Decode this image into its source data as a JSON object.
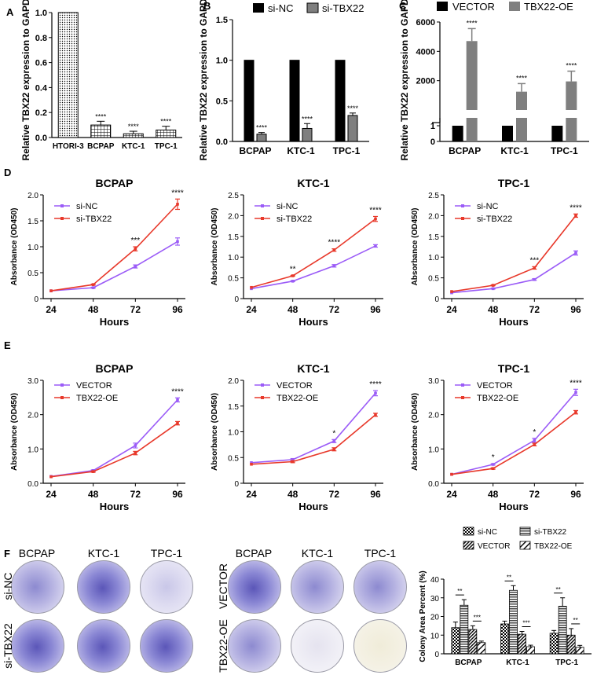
{
  "figure_letters": {
    "A": "A",
    "B": "B",
    "C": "C",
    "D": "D",
    "E": "E",
    "F": "F"
  },
  "colors": {
    "black": "#000000",
    "gray": "#7f7f7f",
    "purple": "#9b5cf7",
    "red": "#e8392b",
    "text": "#000000"
  },
  "chart_data": [
    {
      "id": "A",
      "type": "bar",
      "ylabel": "Relative TBX22 expression to GAPDH",
      "categories": [
        "HTORI-3",
        "BCPAP",
        "KTC-1",
        "TPC-1"
      ],
      "values": [
        1.0,
        0.1,
        0.03,
        0.06
      ],
      "errors": [
        0.0,
        0.03,
        0.02,
        0.03
      ],
      "significance": [
        "",
        "****",
        "****",
        "****"
      ],
      "ylim": [
        0,
        1.0
      ],
      "yticks": [
        0.0,
        0.2,
        0.4,
        0.6,
        0.8,
        1.0
      ],
      "ytick_labels": [
        "0.0",
        "0.2",
        "0.4",
        "0.6",
        "0.8",
        "1.0"
      ]
    },
    {
      "id": "B",
      "type": "bar",
      "ylabel": "Relative TBX22 expression to GAPDH",
      "categories": [
        "BCPAP",
        "KTC-1",
        "TPC-1"
      ],
      "series": [
        {
          "name": "si-NC",
          "values": [
            1.0,
            1.0,
            1.0
          ],
          "errors": [
            0,
            0,
            0
          ],
          "significance": [
            "",
            "",
            ""
          ]
        },
        {
          "name": "si-TBX22",
          "values": [
            0.09,
            0.16,
            0.32
          ],
          "errors": [
            0.02,
            0.06,
            0.03
          ],
          "significance": [
            "****",
            "****",
            "****"
          ]
        }
      ],
      "ylim": [
        0,
        1.5
      ],
      "yticks": [
        0.0,
        0.5,
        1.0,
        1.5
      ],
      "ytick_labels": [
        "0.0",
        "0.5",
        "1.0",
        "1.5"
      ],
      "legend": "top"
    },
    {
      "id": "C",
      "type": "bar",
      "ylabel": "Relative TBX22 expression to GAPDH",
      "categories": [
        "BCPAP",
        "KTC-1",
        "TPC-1"
      ],
      "series": [
        {
          "name": "VECTOR",
          "values": [
            1,
            1,
            1
          ],
          "errors": [
            0,
            0,
            0
          ],
          "significance": [
            "",
            "",
            ""
          ]
        },
        {
          "name": "TBX22-OE",
          "values": [
            4700,
            1250,
            1950
          ],
          "errors": [
            850,
            550,
            700
          ],
          "significance": [
            "****",
            "****",
            "****"
          ]
        }
      ],
      "axis_break": true,
      "lower_segment": {
        "ylim": [
          0,
          1.5
        ],
        "yticks": [
          0,
          1
        ],
        "ytick_labels": [
          "0",
          "1"
        ]
      },
      "upper_segment": {
        "ylim": [
          0,
          6000
        ],
        "yticks": [
          2000,
          4000,
          6000
        ],
        "ytick_labels": [
          "2000",
          "4000",
          "6000"
        ]
      },
      "legend": "top"
    },
    {
      "id": "D1",
      "type": "line",
      "title": "BCPAP",
      "xlabel": "Hours",
      "ylabel": "Absorbance (OD450)",
      "x": [
        24,
        48,
        72,
        96
      ],
      "xtick_labels": [
        "24",
        "48",
        "72",
        "96"
      ],
      "ylim": [
        0,
        2.0
      ],
      "yticks": [
        0,
        0.5,
        1.0,
        1.5,
        2.0
      ],
      "ytick_labels": [
        "0",
        "0.5",
        "1.0",
        "1.5",
        "2.0"
      ],
      "series": [
        {
          "name": "si-NC",
          "color": "purple",
          "values": [
            0.15,
            0.21,
            0.62,
            1.1
          ],
          "errors": [
            0,
            0.01,
            0.03,
            0.07
          ]
        },
        {
          "name": "si-TBX22",
          "color": "red",
          "values": [
            0.15,
            0.27,
            0.96,
            1.82
          ],
          "errors": [
            0,
            0.01,
            0.04,
            0.1
          ]
        }
      ],
      "significance": [
        "",
        "",
        "***",
        "****"
      ]
    },
    {
      "id": "D2",
      "type": "line",
      "title": "KTC-1",
      "xlabel": "Hours",
      "ylabel": "Absorbance (OD450)",
      "x": [
        24,
        48,
        72,
        96
      ],
      "xtick_labels": [
        "24",
        "48",
        "72",
        "96"
      ],
      "ylim": [
        0,
        2.5
      ],
      "yticks": [
        0,
        0.5,
        1.0,
        1.5,
        2.0,
        2.5
      ],
      "ytick_labels": [
        "0",
        "0.5",
        "1.0",
        "1.5",
        "2.0",
        "2.5"
      ],
      "series": [
        {
          "name": "si-NC",
          "color": "purple",
          "values": [
            0.24,
            0.42,
            0.79,
            1.27
          ],
          "errors": [
            0,
            0.01,
            0.03,
            0.03
          ]
        },
        {
          "name": "si-TBX22",
          "color": "red",
          "values": [
            0.27,
            0.55,
            1.17,
            1.92
          ],
          "errors": [
            0,
            0.01,
            0.03,
            0.06
          ]
        }
      ],
      "significance": [
        "",
        "**",
        "****",
        "****"
      ]
    },
    {
      "id": "D3",
      "type": "line",
      "title": "TPC-1",
      "xlabel": "Hours",
      "ylabel": "Absorbance (OD450)",
      "x": [
        24,
        48,
        72,
        96
      ],
      "xtick_labels": [
        "24",
        "48",
        "72",
        "96"
      ],
      "ylim": [
        0,
        2.5
      ],
      "yticks": [
        0,
        0.5,
        1.0,
        1.5,
        2.0,
        2.5
      ],
      "ytick_labels": [
        "0",
        "0.5",
        "1.0",
        "1.5",
        "2.0",
        "2.5"
      ],
      "series": [
        {
          "name": "si-NC",
          "color": "purple",
          "values": [
            0.14,
            0.24,
            0.46,
            1.1
          ],
          "errors": [
            0,
            0.01,
            0.02,
            0.05
          ]
        },
        {
          "name": "si-TBX22",
          "color": "red",
          "values": [
            0.17,
            0.32,
            0.74,
            2.0
          ],
          "errors": [
            0,
            0.01,
            0.03,
            0.04
          ]
        }
      ],
      "significance": [
        "",
        "",
        "***",
        "****"
      ]
    },
    {
      "id": "E1",
      "type": "line",
      "title": "BCPAP",
      "xlabel": "Hours",
      "ylabel": "Absorbance (OD450)",
      "x": [
        24,
        48,
        72,
        96
      ],
      "xtick_labels": [
        "24",
        "48",
        "72",
        "96"
      ],
      "ylim": [
        0,
        3.0
      ],
      "yticks": [
        0,
        1.0,
        2.0,
        3.0
      ],
      "ytick_labels": [
        "0.0",
        "1.0",
        "2.0",
        "3.0"
      ],
      "series": [
        {
          "name": "VECTOR",
          "color": "purple",
          "values": [
            0.2,
            0.37,
            1.1,
            2.43
          ],
          "errors": [
            0,
            0.02,
            0.07,
            0.06
          ]
        },
        {
          "name": "TBX22-OE",
          "color": "red",
          "values": [
            0.19,
            0.34,
            0.88,
            1.75
          ],
          "errors": [
            0,
            0.02,
            0.05,
            0.05
          ]
        }
      ],
      "significance": [
        "",
        "",
        "",
        "****"
      ]
    },
    {
      "id": "E2",
      "type": "line",
      "title": "KTC-1",
      "xlabel": "Hours",
      "ylabel": "Absorbance (OD450)",
      "x": [
        24,
        48,
        72,
        96
      ],
      "xtick_labels": [
        "24",
        "48",
        "72",
        "96"
      ],
      "ylim": [
        0,
        2.0
      ],
      "yticks": [
        0,
        0.5,
        1.0,
        1.5,
        2.0
      ],
      "ytick_labels": [
        "0",
        "0.5",
        "1.0",
        "1.5",
        "2.0"
      ],
      "series": [
        {
          "name": "VECTOR",
          "color": "purple",
          "values": [
            0.4,
            0.46,
            0.82,
            1.75
          ],
          "errors": [
            0,
            0.02,
            0.03,
            0.05
          ]
        },
        {
          "name": "TBX22-OE",
          "color": "red",
          "values": [
            0.37,
            0.42,
            0.66,
            1.33
          ],
          "errors": [
            0,
            0.02,
            0.03,
            0.03
          ]
        }
      ],
      "significance": [
        "",
        "",
        "*",
        "****"
      ]
    },
    {
      "id": "E3",
      "type": "line",
      "title": "TPC-1",
      "xlabel": "Hours",
      "ylabel": "Absorbance (OD450)",
      "x": [
        24,
        48,
        72,
        96
      ],
      "xtick_labels": [
        "24",
        "48",
        "72",
        "96"
      ],
      "ylim": [
        0,
        3.0
      ],
      "yticks": [
        0,
        1.0,
        2.0,
        3.0
      ],
      "ytick_labels": [
        "0.0",
        "1.0",
        "2.0",
        "3.0"
      ],
      "series": [
        {
          "name": "VECTOR",
          "color": "purple",
          "values": [
            0.26,
            0.55,
            1.25,
            2.65
          ],
          "errors": [
            0,
            0.02,
            0.06,
            0.09
          ]
        },
        {
          "name": "TBX22-OE",
          "color": "red",
          "values": [
            0.26,
            0.43,
            1.13,
            2.07
          ],
          "errors": [
            0,
            0.02,
            0.04,
            0.05
          ]
        }
      ],
      "significance": [
        "",
        "*",
        "*",
        "****"
      ]
    },
    {
      "id": "F",
      "type": "bar",
      "ylabel": "Colony Area Percent (%)",
      "categories": [
        "BCPAP",
        "KTC-1",
        "TPC-1"
      ],
      "series": [
        {
          "name": "si-NC",
          "pattern": "checker",
          "values": [
            14,
            16,
            11
          ],
          "errors": [
            3,
            1.5,
            1.5
          ]
        },
        {
          "name": "si-TBX22",
          "pattern": "hlines",
          "values": [
            26,
            34,
            25.5
          ],
          "errors": [
            3,
            2.5,
            4.5
          ]
        },
        {
          "name": "VECTOR",
          "pattern": "diag-dense",
          "values": [
            13,
            10.5,
            10
          ],
          "errors": [
            2,
            1.5,
            3.5
          ]
        },
        {
          "name": "TBX22-OE",
          "pattern": "diag-sparse",
          "values": [
            6,
            3.8,
            3.5
          ],
          "errors": [
            0.8,
            0.8,
            1
          ]
        }
      ],
      "pair_significance": [
        [
          "**",
          "***"
        ],
        [
          "**",
          "***"
        ],
        [
          "**",
          "**"
        ]
      ],
      "ylim": [
        0,
        40
      ],
      "yticks": [
        0,
        10,
        20,
        30,
        40
      ],
      "ytick_labels": [
        "0",
        "10",
        "20",
        "30",
        "40"
      ],
      "legend": "top"
    }
  ],
  "colony_images": {
    "left": {
      "columns": [
        "BCPAP",
        "KTC-1",
        "TPC-1"
      ],
      "rows": [
        "si-NC",
        "si-TBX22"
      ]
    },
    "right": {
      "columns": [
        "BCPAP",
        "KTC-1",
        "TPC-1"
      ],
      "rows": [
        "VECTOR",
        "TBX22-OE"
      ]
    }
  }
}
